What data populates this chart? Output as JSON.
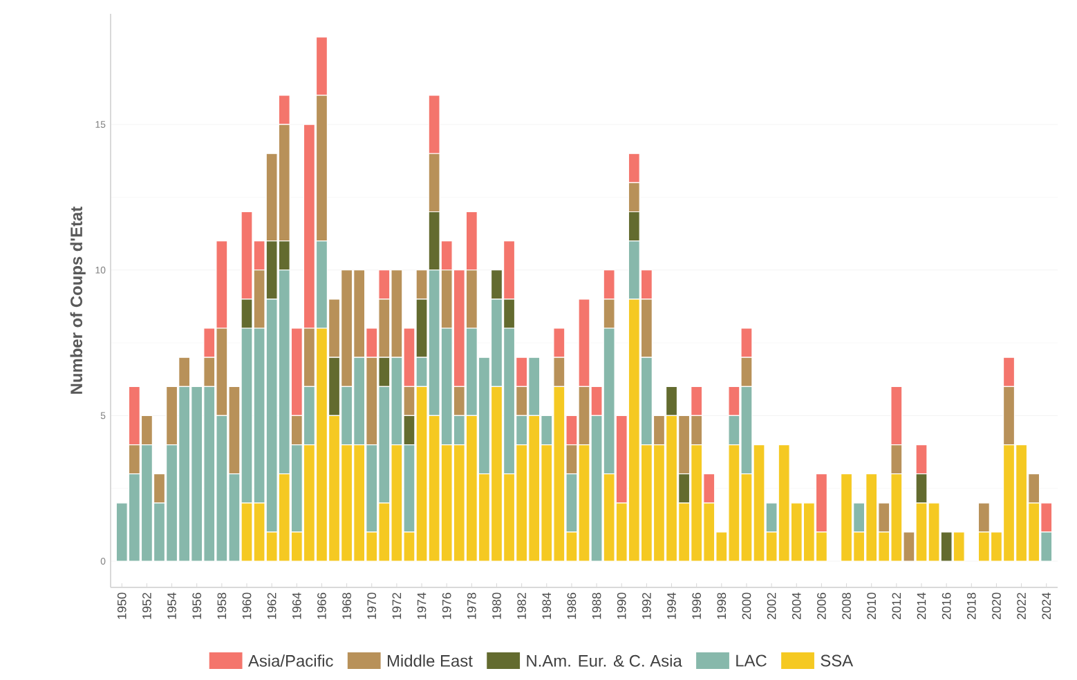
{
  "chart_data": {
    "type": "bar",
    "stacked": true,
    "ylabel": "Number of Coups d'Etat",
    "categories": [
      "1950",
      null,
      "1952",
      null,
      "1954",
      null,
      "1956",
      null,
      "1958",
      null,
      "1960",
      null,
      "1962",
      null,
      "1964",
      null,
      "1966",
      null,
      "1968",
      null,
      "1970",
      null,
      "1972",
      null,
      "1974",
      null,
      "1976",
      null,
      "1978",
      null,
      "1980",
      null,
      "1982",
      null,
      "1984",
      null,
      "1986",
      null,
      "1988",
      null,
      "1990",
      null,
      "1992",
      null,
      "1994",
      null,
      "1996",
      null,
      "1998",
      null,
      "2000",
      null,
      "2002",
      null,
      "2004",
      null,
      "2006",
      null,
      "2008",
      null,
      "2010",
      null,
      "2012",
      null,
      "2014",
      null,
      "2016",
      null,
      "2018",
      null,
      "2020",
      null,
      "2022",
      null,
      "2024"
    ],
    "series": [
      {
        "name": "SSA",
        "color": "#f5c922",
        "values": [
          0,
          0,
          0,
          0,
          0,
          0,
          0,
          0,
          0,
          0,
          2,
          2,
          1,
          3,
          1,
          4,
          8,
          5,
          4,
          4,
          1,
          2,
          4,
          1,
          6,
          5,
          4,
          4,
          5,
          3,
          6,
          3,
          4,
          5,
          4,
          6,
          1,
          4,
          0,
          3,
          2,
          9,
          4,
          4,
          5,
          2,
          4,
          2,
          1,
          4,
          3,
          4,
          1,
          4,
          2,
          2,
          1,
          0,
          3,
          1,
          3,
          1,
          3,
          0,
          2,
          2,
          0,
          1,
          0,
          1,
          1,
          4,
          4,
          2,
          0
        ]
      },
      {
        "name": "LAC",
        "color": "#87b8ab",
        "values": [
          2,
          3,
          4,
          2,
          4,
          6,
          6,
          6,
          5,
          3,
          6,
          6,
          8,
          7,
          3,
          2,
          3,
          0,
          2,
          3,
          3,
          4,
          3,
          3,
          1,
          5,
          4,
          1,
          3,
          4,
          3,
          5,
          1,
          2,
          1,
          0,
          2,
          0,
          5,
          5,
          0,
          2,
          3,
          0,
          0,
          0,
          0,
          0,
          0,
          1,
          3,
          0,
          1,
          0,
          0,
          0,
          0,
          0,
          0,
          1,
          0,
          0,
          0,
          0,
          0,
          0,
          0,
          0,
          0,
          0,
          0,
          0,
          0,
          0,
          1
        ]
      },
      {
        "name": "N.Am. Eur. & C. Asia",
        "color": "#636b2f",
        "values": [
          0,
          0,
          0,
          0,
          0,
          0,
          0,
          0,
          0,
          0,
          1,
          0,
          2,
          1,
          0,
          0,
          0,
          2,
          0,
          0,
          0,
          1,
          0,
          1,
          2,
          2,
          0,
          0,
          0,
          0,
          1,
          1,
          0,
          0,
          0,
          0,
          0,
          0,
          0,
          0,
          0,
          1,
          0,
          0,
          1,
          1,
          0,
          0,
          0,
          0,
          0,
          0,
          0,
          0,
          0,
          0,
          0,
          0,
          0,
          0,
          0,
          0,
          0,
          0,
          1,
          0,
          1,
          0,
          0,
          0,
          0,
          0,
          0,
          0,
          0
        ]
      },
      {
        "name": "Middle East",
        "color": "#b89159",
        "values": [
          0,
          1,
          1,
          1,
          2,
          1,
          0,
          1,
          3,
          3,
          0,
          2,
          3,
          4,
          1,
          2,
          5,
          2,
          4,
          3,
          3,
          2,
          3,
          1,
          1,
          2,
          2,
          1,
          2,
          0,
          0,
          0,
          1,
          0,
          0,
          1,
          1,
          2,
          0,
          1,
          0,
          1,
          2,
          1,
          0,
          2,
          1,
          0,
          0,
          0,
          1,
          0,
          0,
          0,
          0,
          0,
          0,
          0,
          0,
          0,
          0,
          1,
          1,
          1,
          0,
          0,
          0,
          0,
          0,
          1,
          0,
          2,
          0,
          1,
          0
        ]
      },
      {
        "name": "Asia/Pacific",
        "color": "#f4756c",
        "values": [
          0,
          2,
          0,
          0,
          0,
          0,
          0,
          1,
          3,
          0,
          3,
          1,
          0,
          1,
          3,
          7,
          2,
          0,
          0,
          0,
          1,
          1,
          0,
          2,
          0,
          2,
          1,
          4,
          2,
          0,
          0,
          2,
          1,
          0,
          0,
          1,
          1,
          3,
          1,
          1,
          3,
          1,
          1,
          0,
          0,
          0,
          1,
          1,
          0,
          1,
          1,
          0,
          0,
          0,
          0,
          0,
          2,
          0,
          0,
          0,
          0,
          0,
          2,
          0,
          1,
          0,
          0,
          0,
          0,
          0,
          0,
          1,
          0,
          0,
          1
        ]
      }
    ],
    "ylim": [
      -0.9,
      18.8
    ],
    "yticks": [
      0,
      5,
      10,
      15
    ],
    "grid": "y",
    "legend": "bottom"
  }
}
